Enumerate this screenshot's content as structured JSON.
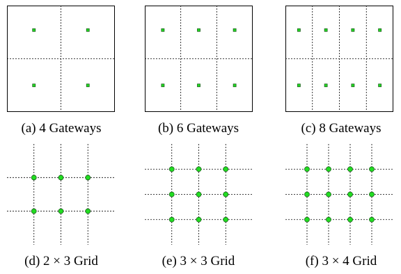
{
  "panels": [
    {
      "caption": "(a) 4 Gateways",
      "kind": "gateways",
      "cols": 2,
      "rows": 2,
      "points": [
        [
          0.25,
          0.25
        ],
        [
          0.75,
          0.25
        ],
        [
          0.25,
          0.75
        ],
        [
          0.75,
          0.75
        ]
      ]
    },
    {
      "caption": "(b) 6 Gateways",
      "kind": "gateways",
      "cols": 3,
      "rows": 2,
      "points": [
        [
          0.167,
          0.25
        ],
        [
          0.5,
          0.25
        ],
        [
          0.833,
          0.25
        ],
        [
          0.167,
          0.75
        ],
        [
          0.5,
          0.75
        ],
        [
          0.833,
          0.75
        ]
      ]
    },
    {
      "caption": "(c) 8 Gateways",
      "kind": "gateways",
      "cols": 4,
      "rows": 2,
      "points": [
        [
          0.125,
          0.25
        ],
        [
          0.375,
          0.25
        ],
        [
          0.625,
          0.25
        ],
        [
          0.875,
          0.25
        ],
        [
          0.125,
          0.75
        ],
        [
          0.375,
          0.75
        ],
        [
          0.625,
          0.75
        ],
        [
          0.875,
          0.75
        ]
      ]
    },
    {
      "caption": "(d) 2 × 3 Grid",
      "kind": "grid",
      "cols": 3,
      "rows": 2
    },
    {
      "caption": "(e) 3 × 3 Grid",
      "kind": "grid",
      "cols": 3,
      "rows": 3
    },
    {
      "caption": "(f) 3 × 4 Grid",
      "kind": "grid",
      "cols": 4,
      "rows": 3
    }
  ],
  "colors": {
    "marker_fill": "#22dd22",
    "marker_stroke": "#1a5c1a",
    "line": "#000000"
  }
}
